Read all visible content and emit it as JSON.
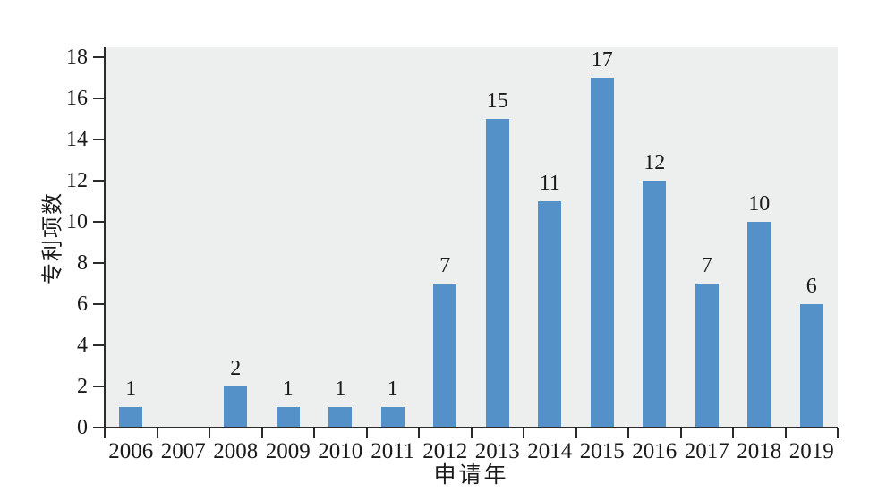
{
  "figure": {
    "background_color": "#ffffff",
    "plot_background_color": "#edefee",
    "bar_color": "#5491c8",
    "axis_color": "#2b2b2b",
    "text_color": "#1a1a1a"
  },
  "chart_data": {
    "type": "bar",
    "title": "",
    "xlabel": "申请年",
    "ylabel": "专利项数",
    "categories": [
      "2006",
      "2007",
      "2008",
      "2009",
      "2010",
      "2011",
      "2012",
      "2013",
      "2014",
      "2015",
      "2016",
      "2017",
      "2018",
      "2019"
    ],
    "values": [
      1,
      0,
      2,
      1,
      1,
      1,
      7,
      15,
      11,
      17,
      12,
      7,
      10,
      6
    ],
    "bar_labels_visible": true,
    "ylim": [
      0,
      18
    ],
    "yticks": [
      0,
      2,
      4,
      6,
      8,
      10,
      12,
      14,
      16,
      18
    ],
    "grid": "off",
    "legend": "none",
    "tick_position": "between-categories"
  }
}
